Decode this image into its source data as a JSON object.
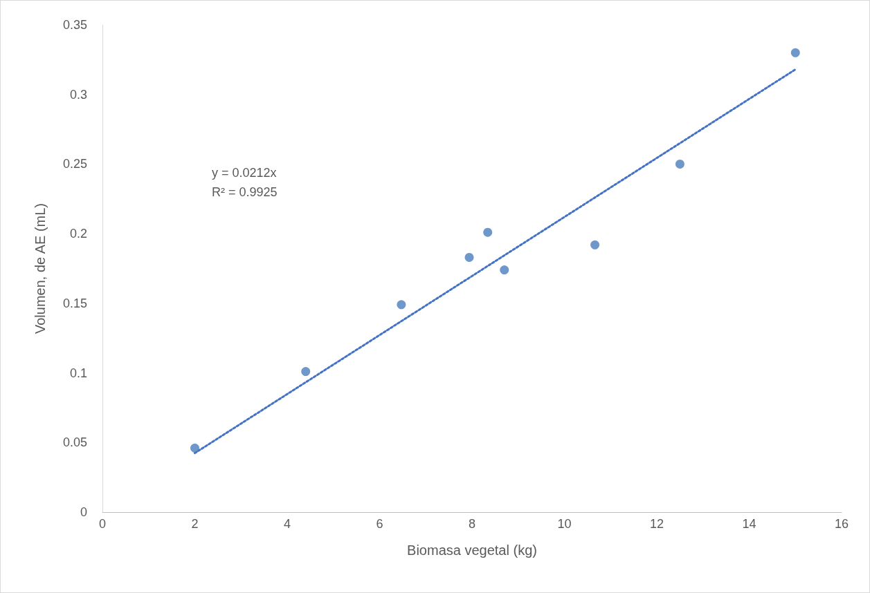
{
  "chart_data": {
    "type": "scatter",
    "xlabel": "Biomasa vegetal (kg)",
    "ylabel": "Volumen, de AE (mL)",
    "xlim": [
      0,
      16
    ],
    "xticks": [
      0,
      2,
      4,
      6,
      8,
      10,
      12,
      14,
      16
    ],
    "ylim": [
      0,
      0.35
    ],
    "yticks": [
      0,
      0.05,
      0.1,
      0.15,
      0.2,
      0.25,
      0.3,
      0.35
    ],
    "grid": false,
    "series": [
      {
        "marker": "circle",
        "color": "#4a7ebb",
        "x": [
          2,
          4.4,
          6.47,
          7.94,
          8.34,
          8.7,
          10.66,
          12.5,
          15
        ],
        "values": [
          0.046,
          0.101,
          0.149,
          0.183,
          0.201,
          0.174,
          0.192,
          0.25,
          0.33
        ]
      },
      {
        "type": "line",
        "marker": "none",
        "line_style": "dotted",
        "color": "#4472c4",
        "x": [
          2,
          15
        ],
        "values": [
          0.0424,
          0.318
        ]
      }
    ],
    "annotations": [
      "y = 0.0212x",
      "R² = 0.9925"
    ]
  }
}
